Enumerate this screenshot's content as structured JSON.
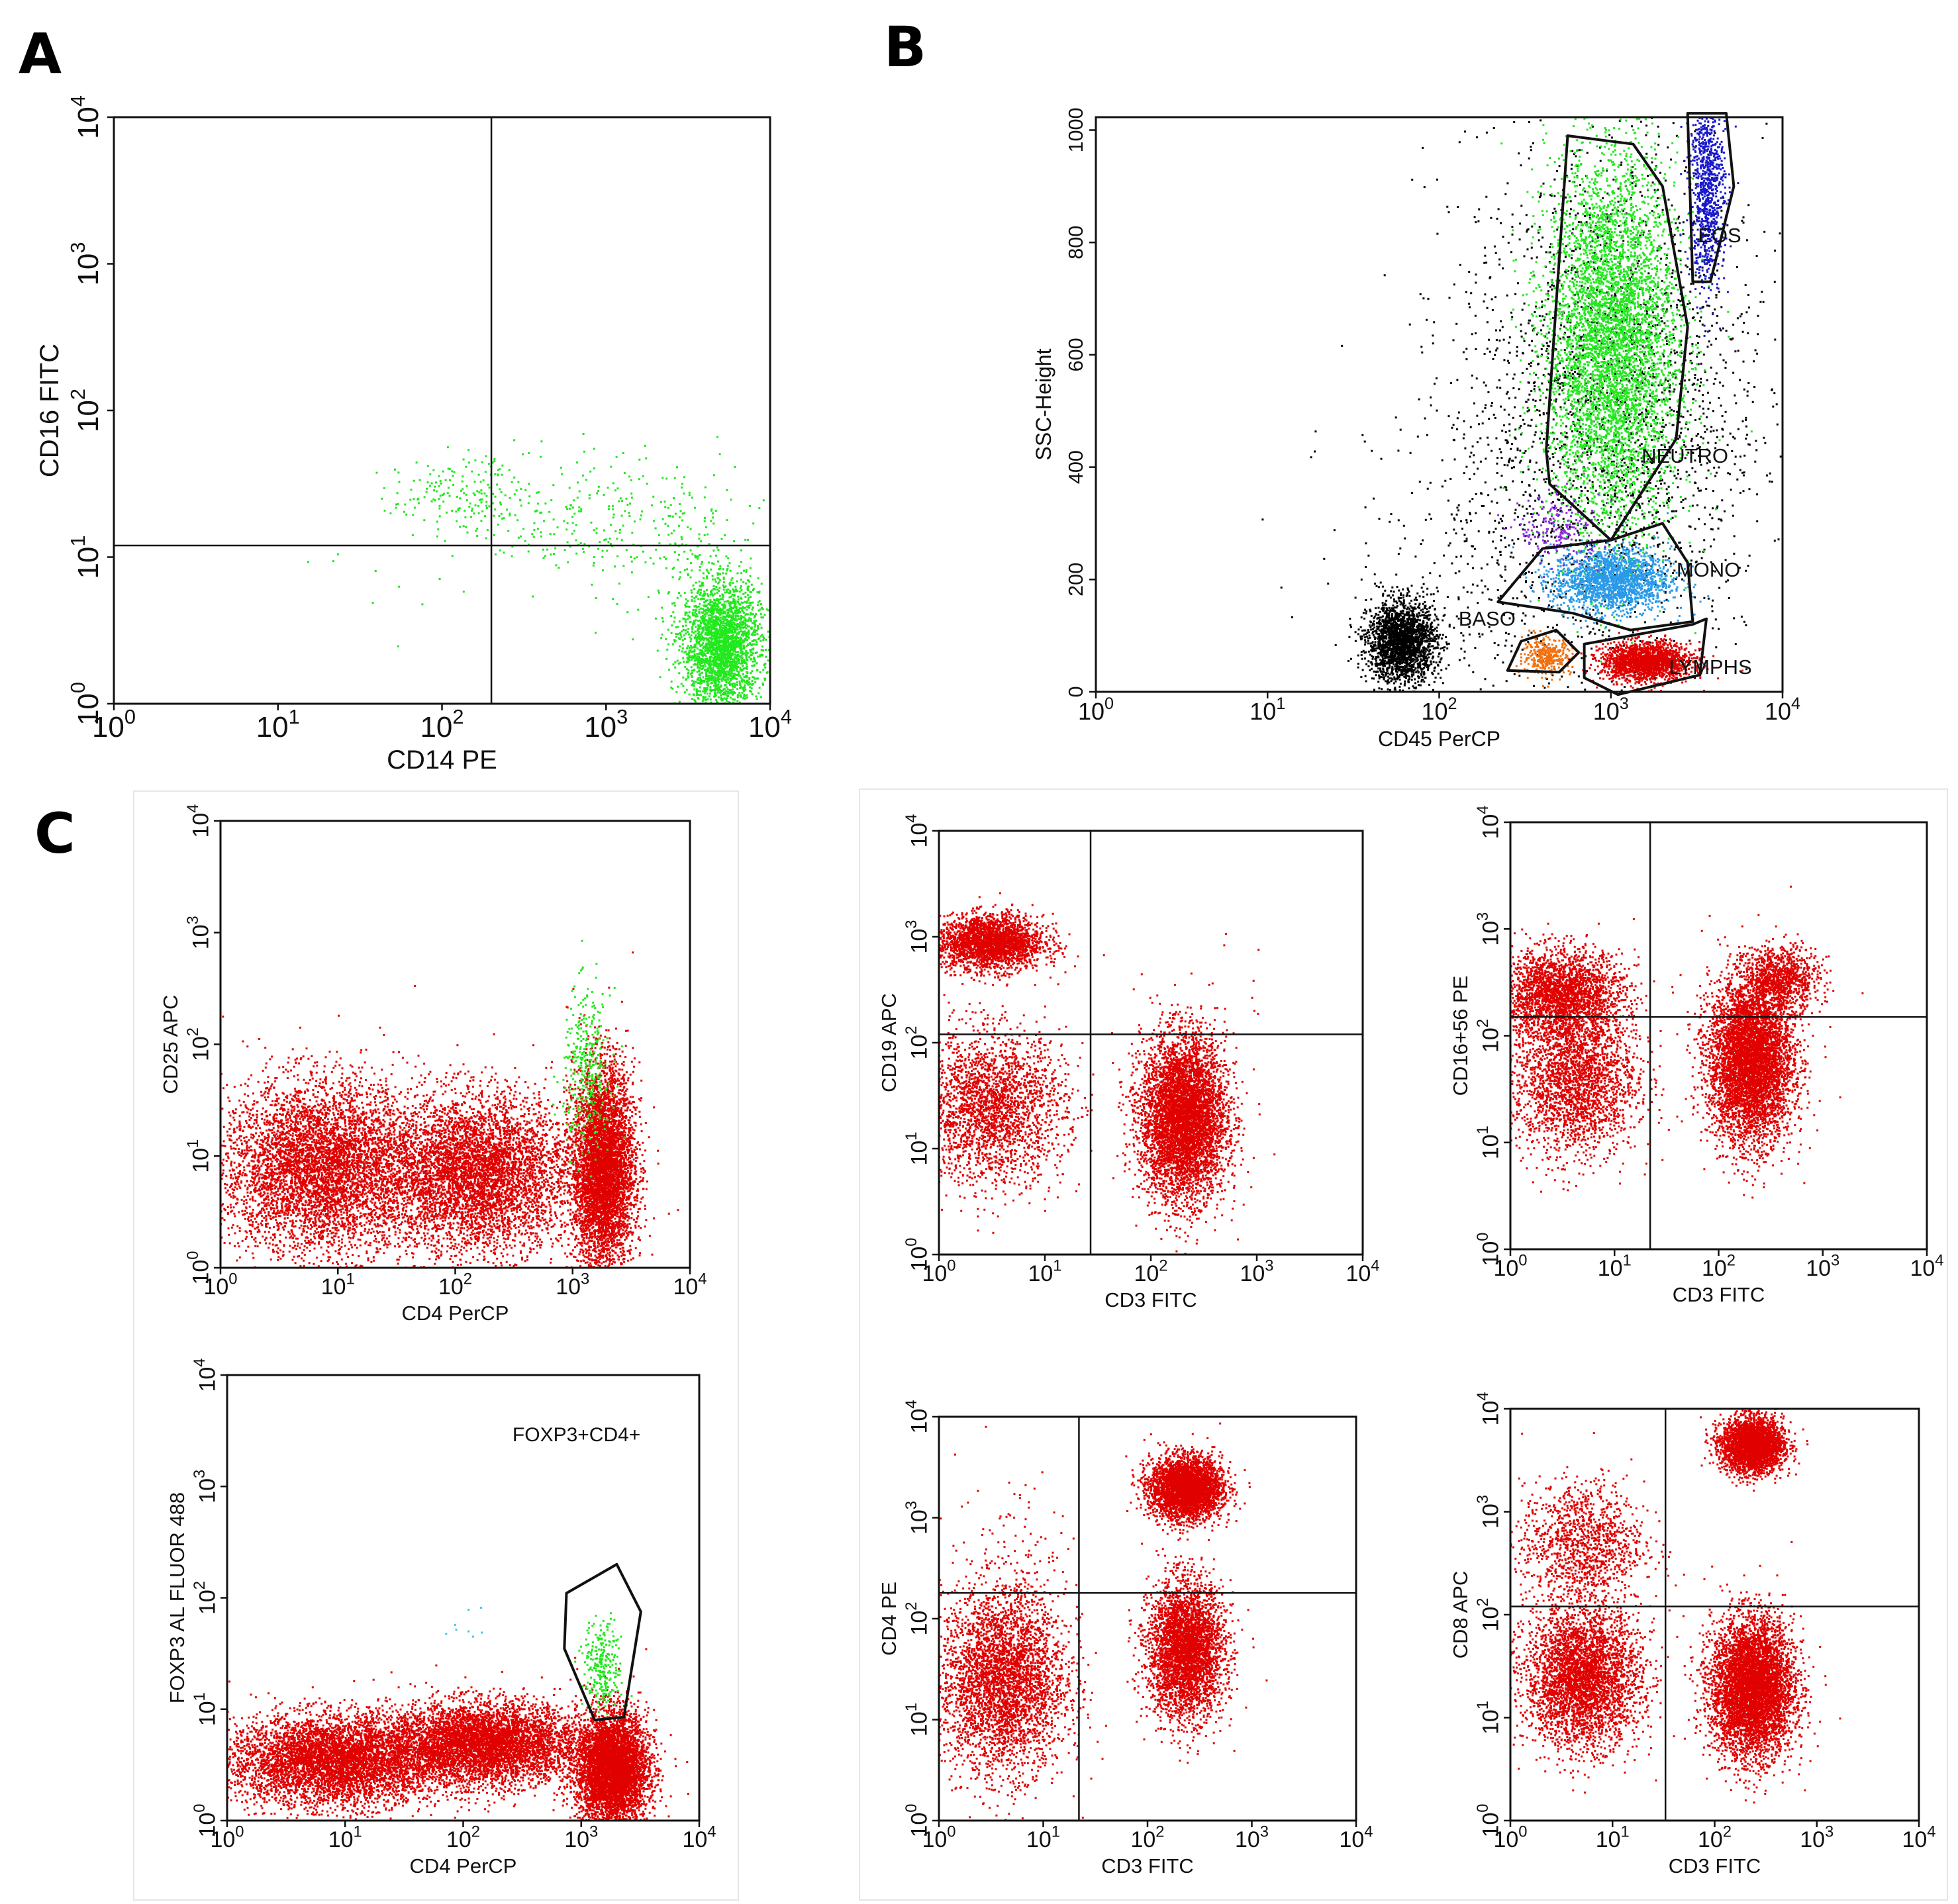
{
  "panel_labels": [
    "A",
    "B",
    "C"
  ],
  "colors": {
    "green": "#22e81e",
    "red": "#e00000",
    "black": "#000000",
    "blue_eos": "#1818cc",
    "blue_mono": "#2a9ae8",
    "orange_baso": "#f07010",
    "purple": "#8a2be2",
    "cyan": "#3cc8e8",
    "axis": "#111111"
  },
  "chart_data": [
    {
      "id": "A",
      "type": "scatter",
      "scale": "log",
      "xlabel": "CD14 PE",
      "ylabel": "CD16  FITC",
      "xlim": [
        1,
        10000
      ],
      "ylim": [
        1,
        10000
      ],
      "x_ticks": [
        {
          "base": "10",
          "exp": "0"
        },
        {
          "base": "10",
          "exp": "1"
        },
        {
          "base": "10",
          "exp": "2"
        },
        {
          "base": "10",
          "exp": "3"
        },
        {
          "base": "10",
          "exp": "4"
        }
      ],
      "y_ticks": [
        {
          "base": "10",
          "exp": "0"
        },
        {
          "base": "10",
          "exp": "1"
        },
        {
          "base": "10",
          "exp": "2"
        },
        {
          "base": "10",
          "exp": "3"
        },
        {
          "base": "10",
          "exp": "4"
        }
      ],
      "quadrant": {
        "x": 200,
        "y": 12
      },
      "populations": [
        {
          "color": "#22e81e",
          "cx": 5000,
          "cy": 2.5,
          "sx": 0.12,
          "sy": 0.22,
          "n": 2600
        },
        {
          "color": "#22e81e",
          "cx": 120,
          "cy": 28,
          "sx": 0.2,
          "sy": 0.12,
          "n": 160
        },
        {
          "color": "#22e81e",
          "cx": 800,
          "cy": 20,
          "sx": 0.4,
          "sy": 0.22,
          "n": 240
        },
        {
          "color": "#22e81e",
          "cx": 3000,
          "cy": 10,
          "sx": 0.25,
          "sy": 0.3,
          "n": 140
        },
        {
          "color": "#22e81e",
          "cx": 40,
          "cy": 6,
          "sx": 0.35,
          "sy": 0.3,
          "n": 12
        }
      ]
    },
    {
      "id": "B",
      "type": "scatter",
      "scale": "log-linear",
      "xlabel": "CD45 PerCP",
      "ylabel": "SSC-Height",
      "xlim": [
        1,
        10000
      ],
      "ylim": [
        0,
        1023
      ],
      "x_ticks": [
        {
          "base": "10",
          "exp": "0"
        },
        {
          "base": "10",
          "exp": "1"
        },
        {
          "base": "10",
          "exp": "2"
        },
        {
          "base": "10",
          "exp": "3"
        },
        {
          "base": "10",
          "exp": "4"
        }
      ],
      "y_ticks": [
        "0",
        "200",
        "400",
        "600",
        "800",
        "1000"
      ],
      "gates": [
        {
          "name": "NEUTRO",
          "points": [
            [
              420,
              430
            ],
            [
              560,
              990
            ],
            [
              1350,
              975
            ],
            [
              2000,
              900
            ],
            [
              2800,
              650
            ],
            [
              2400,
              450
            ],
            [
              1000,
              270
            ],
            [
              440,
              370
            ]
          ]
        },
        {
          "name": "EOS",
          "points": [
            [
              2800,
              1030
            ],
            [
              4700,
              1030
            ],
            [
              5200,
              900
            ],
            [
              3800,
              730
            ],
            [
              3000,
              730
            ]
          ]
        },
        {
          "name": "MONO",
          "points": [
            [
              220,
              160
            ],
            [
              400,
              255
            ],
            [
              1000,
              270
            ],
            [
              2000,
              300
            ],
            [
              2800,
              230
            ],
            [
              3000,
              125
            ],
            [
              1300,
              110
            ],
            [
              600,
              140
            ]
          ]
        },
        {
          "name": "BASO",
          "points": [
            [
              250,
              38
            ],
            [
              500,
              35
            ],
            [
              650,
              70
            ],
            [
              480,
              110
            ],
            [
              300,
              90
            ]
          ]
        },
        {
          "name": "LYMPHS",
          "points": [
            [
              700,
              25
            ],
            [
              1100,
              -5
            ],
            [
              3300,
              30
            ],
            [
              3600,
              130
            ],
            [
              3000,
              120
            ],
            [
              700,
              85
            ]
          ]
        }
      ],
      "gate_labels": [
        "EOS",
        "NEUTRO",
        "MONO",
        "BASO",
        "LYMPHS"
      ],
      "populations": [
        {
          "color": "#000000",
          "cx": 1000,
          "cy": 530,
          "sx": 0.45,
          "sy": 240,
          "n": 2200
        },
        {
          "color": "#000000",
          "cx": 60,
          "cy": 90,
          "sx": 0.1,
          "sy": 35,
          "n": 2200
        },
        {
          "color": "#000000",
          "cx": 300,
          "cy": 250,
          "sx": 0.5,
          "sy": 160,
          "n": 500
        },
        {
          "color": "#22e81e",
          "cx": 1000,
          "cy": 620,
          "sx": 0.19,
          "sy": 170,
          "n": 9000
        },
        {
          "color": "#1818cc",
          "cx": 3600,
          "cy": 900,
          "sx": 0.05,
          "sy": 90,
          "n": 900
        },
        {
          "color": "#2a9ae8",
          "cx": 1000,
          "cy": 200,
          "sx": 0.17,
          "sy": 28,
          "n": 1800
        },
        {
          "color": "#e00000",
          "cx": 1600,
          "cy": 55,
          "sx": 0.13,
          "sy": 17,
          "n": 1800
        },
        {
          "color": "#f07010",
          "cx": 420,
          "cy": 65,
          "sx": 0.07,
          "sy": 16,
          "n": 350
        },
        {
          "color": "#8a2be2",
          "cx": 500,
          "cy": 290,
          "sx": 0.12,
          "sy": 30,
          "n": 200
        }
      ]
    },
    {
      "id": "C1",
      "type": "scatter",
      "scale": "log",
      "xlabel": "CD4 PerCP",
      "ylabel": "CD25 APC",
      "xlim": [
        1,
        10000
      ],
      "ylim": [
        1,
        10000
      ],
      "x_ticks": [
        {
          "base": "10",
          "exp": "0"
        },
        {
          "base": "10",
          "exp": "1"
        },
        {
          "base": "10",
          "exp": "2"
        },
        {
          "base": "10",
          "exp": "3"
        },
        {
          "base": "10",
          "exp": "4"
        }
      ],
      "y_ticks": [
        {
          "base": "10",
          "exp": "0"
        },
        {
          "base": "10",
          "exp": "1"
        },
        {
          "base": "10",
          "exp": "2"
        },
        {
          "base": "10",
          "exp": "3"
        },
        {
          "base": "10",
          "exp": "4"
        }
      ],
      "populations": [
        {
          "color": "#e00000",
          "cx": 7,
          "cy": 8,
          "sx": 0.42,
          "sy": 0.38,
          "n": 9000
        },
        {
          "color": "#e00000",
          "cx": 150,
          "cy": 7,
          "sx": 0.4,
          "sy": 0.35,
          "n": 5000
        },
        {
          "color": "#e00000",
          "cx": 1800,
          "cy": 8,
          "sx": 0.13,
          "sy": 0.45,
          "n": 5000
        },
        {
          "color": "#22e81e",
          "cx": 1300,
          "cy": 60,
          "sx": 0.1,
          "sy": 0.35,
          "n": 350
        }
      ]
    },
    {
      "id": "C2",
      "type": "scatter",
      "scale": "log",
      "xlabel": "CD4 PerCP",
      "ylabel": "FOXP3 AL FLUOR 488",
      "xlim": [
        1,
        10000
      ],
      "ylim": [
        1,
        10000
      ],
      "x_ticks": [
        {
          "base": "10",
          "exp": "0"
        },
        {
          "base": "10",
          "exp": "1"
        },
        {
          "base": "10",
          "exp": "2"
        },
        {
          "base": "10",
          "exp": "3"
        },
        {
          "base": "10",
          "exp": "4"
        }
      ],
      "y_ticks": [
        {
          "base": "10",
          "exp": "0"
        },
        {
          "base": "10",
          "exp": "1"
        },
        {
          "base": "10",
          "exp": "2"
        },
        {
          "base": "10",
          "exp": "3"
        },
        {
          "base": "10",
          "exp": "4"
        }
      ],
      "annotation": "FOXP3+CD4+",
      "gates": [
        {
          "name": "FOXP3+CD4+",
          "points": [
            [
              750,
              110
            ],
            [
              2000,
              200
            ],
            [
              3200,
              75
            ],
            [
              2300,
              8.5
            ],
            [
              1300,
              8
            ],
            [
              720,
              35
            ]
          ]
        }
      ],
      "populations": [
        {
          "color": "#e00000",
          "cx": 8,
          "cy": 3.5,
          "sx": 0.45,
          "sy": 0.2,
          "n": 9000
        },
        {
          "color": "#e00000",
          "cx": 150,
          "cy": 5,
          "sx": 0.4,
          "sy": 0.18,
          "n": 5000
        },
        {
          "color": "#e00000",
          "cx": 1800,
          "cy": 3,
          "sx": 0.15,
          "sy": 0.25,
          "n": 5000
        },
        {
          "color": "#22e81e",
          "cx": 1500,
          "cy": 25,
          "sx": 0.08,
          "sy": 0.2,
          "n": 260
        },
        {
          "color": "#3cc8e8",
          "cx": 100,
          "cy": 50,
          "sx": 0.1,
          "sy": 0.1,
          "n": 8
        }
      ]
    },
    {
      "id": "C3",
      "type": "scatter",
      "scale": "log",
      "xlabel": "CD3 FITC",
      "ylabel": "CD19 APC",
      "xlim": [
        1,
        10000
      ],
      "ylim": [
        1,
        10000
      ],
      "x_ticks": [
        {
          "base": "10",
          "exp": "0"
        },
        {
          "base": "10",
          "exp": "1"
        },
        {
          "base": "10",
          "exp": "2"
        },
        {
          "base": "10",
          "exp": "3"
        },
        {
          "base": "10",
          "exp": "4"
        }
      ],
      "y_ticks": [
        {
          "base": "10",
          "exp": "0"
        },
        {
          "base": "10",
          "exp": "1"
        },
        {
          "base": "10",
          "exp": "2"
        },
        {
          "base": "10",
          "exp": "3"
        },
        {
          "base": "10",
          "exp": "4"
        }
      ],
      "quadrant": {
        "x": 27,
        "y": 120
      },
      "populations": [
        {
          "color": "#e00000",
          "cx": 3,
          "cy": 900,
          "sx": 0.25,
          "sy": 0.13,
          "n": 2400
        },
        {
          "color": "#e00000",
          "cx": 3,
          "cy": 25,
          "sx": 0.35,
          "sy": 0.35,
          "n": 2400
        },
        {
          "color": "#e00000",
          "cx": 200,
          "cy": 20,
          "sx": 0.2,
          "sy": 0.38,
          "n": 7000
        },
        {
          "color": "#e00000",
          "cx": 800,
          "cy": 300,
          "sx": 0.2,
          "sy": 0.3,
          "n": 8
        }
      ]
    },
    {
      "id": "C4",
      "type": "scatter",
      "scale": "log",
      "xlabel": "CD3 FITC",
      "ylabel": "CD16+56 PE",
      "xlim": [
        1,
        10000
      ],
      "ylim": [
        1,
        10000
      ],
      "x_ticks": [
        {
          "base": "10",
          "exp": "0"
        },
        {
          "base": "10",
          "exp": "1"
        },
        {
          "base": "10",
          "exp": "2"
        },
        {
          "base": "10",
          "exp": "3"
        },
        {
          "base": "10",
          "exp": "4"
        }
      ],
      "y_ticks": [
        {
          "base": "10",
          "exp": "0"
        },
        {
          "base": "10",
          "exp": "1"
        },
        {
          "base": "10",
          "exp": "2"
        },
        {
          "base": "10",
          "exp": "3"
        },
        {
          "base": "10",
          "exp": "4"
        }
      ],
      "quadrant": {
        "x": 22,
        "y": 150
      },
      "populations": [
        {
          "color": "#e00000",
          "cx": 3,
          "cy": 250,
          "sx": 0.3,
          "sy": 0.2,
          "n": 2400
        },
        {
          "color": "#e00000",
          "cx": 4,
          "cy": 40,
          "sx": 0.3,
          "sy": 0.35,
          "n": 2400
        },
        {
          "color": "#e00000",
          "cx": 200,
          "cy": 60,
          "sx": 0.2,
          "sy": 0.38,
          "n": 6000
        },
        {
          "color": "#e00000",
          "cx": 400,
          "cy": 350,
          "sx": 0.18,
          "sy": 0.15,
          "n": 900
        }
      ]
    },
    {
      "id": "C5",
      "type": "scatter",
      "scale": "log",
      "xlabel": "CD3 FITC",
      "ylabel": "CD4 PE",
      "xlim": [
        1,
        10000
      ],
      "ylim": [
        1,
        10000
      ],
      "x_ticks": [
        {
          "base": "10",
          "exp": "0"
        },
        {
          "base": "10",
          "exp": "1"
        },
        {
          "base": "10",
          "exp": "2"
        },
        {
          "base": "10",
          "exp": "3"
        },
        {
          "base": "10",
          "exp": "4"
        }
      ],
      "y_ticks": [
        {
          "base": "10",
          "exp": "0"
        },
        {
          "base": "10",
          "exp": "1"
        },
        {
          "base": "10",
          "exp": "2"
        },
        {
          "base": "10",
          "exp": "3"
        },
        {
          "base": "10",
          "exp": "4"
        }
      ],
      "quadrant": {
        "x": 22,
        "y": 180
      },
      "populations": [
        {
          "color": "#e00000",
          "cx": 230,
          "cy": 2000,
          "sx": 0.17,
          "sy": 0.15,
          "n": 3600
        },
        {
          "color": "#e00000",
          "cx": 230,
          "cy": 50,
          "sx": 0.18,
          "sy": 0.33,
          "n": 3600
        },
        {
          "color": "#e00000",
          "cx": 4,
          "cy": 25,
          "sx": 0.3,
          "sy": 0.45,
          "n": 3600
        },
        {
          "color": "#e00000",
          "cx": 6,
          "cy": 600,
          "sx": 0.3,
          "sy": 0.4,
          "n": 80
        }
      ]
    },
    {
      "id": "C6",
      "type": "scatter",
      "scale": "log",
      "xlabel": "CD3 FITC",
      "ylabel": "CD8 APC",
      "xlim": [
        1,
        10000
      ],
      "ylim": [
        1,
        10000
      ],
      "x_ticks": [
        {
          "base": "10",
          "exp": "0"
        },
        {
          "base": "10",
          "exp": "1"
        },
        {
          "base": "10",
          "exp": "2"
        },
        {
          "base": "10",
          "exp": "3"
        },
        {
          "base": "10",
          "exp": "4"
        }
      ],
      "y_ticks": [
        {
          "base": "10",
          "exp": "0"
        },
        {
          "base": "10",
          "exp": "1"
        },
        {
          "base": "10",
          "exp": "2"
        },
        {
          "base": "10",
          "exp": "3"
        },
        {
          "base": "10",
          "exp": "4"
        }
      ],
      "quadrant": {
        "x": 33,
        "y": 120
      },
      "populations": [
        {
          "color": "#e00000",
          "cx": 230,
          "cy": 4500,
          "sx": 0.15,
          "sy": 0.13,
          "n": 3000
        },
        {
          "color": "#e00000",
          "cx": 230,
          "cy": 20,
          "sx": 0.2,
          "sy": 0.33,
          "n": 6000
        },
        {
          "color": "#e00000",
          "cx": 5,
          "cy": 25,
          "sx": 0.28,
          "sy": 0.33,
          "n": 3600
        },
        {
          "color": "#e00000",
          "cx": 5,
          "cy": 500,
          "sx": 0.3,
          "sy": 0.3,
          "n": 1200
        }
      ]
    }
  ]
}
